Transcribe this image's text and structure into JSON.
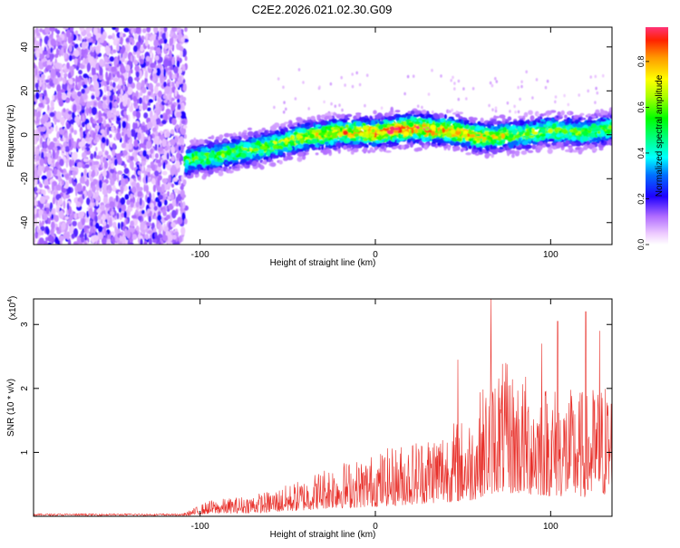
{
  "title": "C2E2.2026.021.02.30.G09",
  "chart_data": [
    {
      "type": "heatmap",
      "xlabel": "Height of straight line (km)",
      "ylabel": "Frequency (Hz)",
      "xlim": [
        -195,
        135
      ],
      "ylim": [
        -50,
        49
      ],
      "xticks": [
        -100,
        0,
        100
      ],
      "yticks": [
        -40,
        -20,
        0,
        20,
        40
      ],
      "colorbar": {
        "label": "Normalized spectral amplitude",
        "range": [
          0,
          0.95
        ],
        "ticks": [
          "0.0",
          "0.2",
          "0.4",
          "0.6",
          "0.8"
        ],
        "tick_values": [
          0,
          0.2,
          0.4,
          0.6,
          0.8
        ]
      },
      "noise_region_x": [
        -195,
        -108
      ],
      "ridge": {
        "x": [
          -108,
          -95,
          -80,
          -60,
          -40,
          -20,
          0,
          20,
          40,
          60,
          80,
          100,
          120,
          135
        ],
        "y": [
          -12,
          -10,
          -8,
          -5,
          -1,
          1,
          1,
          3,
          2,
          -1,
          0,
          2,
          1,
          3
        ],
        "peak_amplitude": 0.95
      }
    },
    {
      "type": "line",
      "xlabel": "Height of straight line (km)",
      "ylabel": "SNR (10 * v/v)",
      "y_scale_label_base": "(x10",
      "y_scale_label_exp": "4",
      "y_scale_label_close": ")",
      "xlim": [
        -195,
        135
      ],
      "ylim": [
        0,
        3.4
      ],
      "xticks": [
        -100,
        0,
        100
      ],
      "yticks": [
        1,
        2,
        3
      ],
      "color": "#e8302a",
      "envelope": {
        "x": [
          -195,
          -110,
          -95,
          -80,
          -60,
          -40,
          -25,
          -10,
          0,
          20,
          40,
          55,
          60,
          70,
          80,
          90,
          100,
          110,
          120,
          135
        ],
        "y": [
          0.03,
          0.04,
          0.25,
          0.3,
          0.4,
          0.6,
          0.85,
          0.9,
          1.0,
          1.2,
          1.45,
          1.6,
          2.0,
          2.5,
          2.3,
          2.2,
          2.1,
          2.0,
          2.0,
          2.2
        ]
      },
      "spikes": [
        {
          "x": 66,
          "y": 3.4
        },
        {
          "x": 120,
          "y": 3.2
        },
        {
          "x": 104,
          "y": 3.05
        },
        {
          "x": 128,
          "y": 2.9
        },
        {
          "x": 95,
          "y": 2.7
        },
        {
          "x": 47,
          "y": 2.45
        }
      ]
    }
  ]
}
